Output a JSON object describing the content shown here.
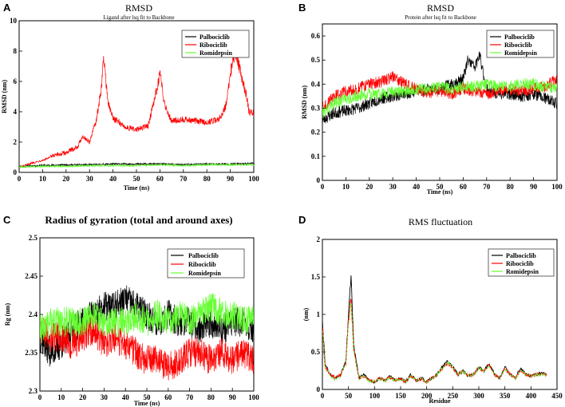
{
  "panels": [
    {
      "id": "A",
      "letter": "A",
      "title": "RMSD",
      "subtitle": "Ligand after lsq fit to Backbone",
      "xlabel": "Time (ns)",
      "ylabel": "RMSD (nm)",
      "xticks": [
        "0",
        "10",
        "20",
        "30",
        "40",
        "50",
        "60",
        "70",
        "80",
        "90",
        "100"
      ],
      "yticks": [
        "0",
        "2",
        "4",
        "6",
        "8",
        "10"
      ],
      "legend": [
        "Palbociclib",
        "Ribociclib",
        "Romidepsin"
      ]
    },
    {
      "id": "B",
      "letter": "B",
      "title": "RMSD",
      "subtitle": "Protein after lsq fit to Backbone",
      "xlabel": "Time (ns)",
      "ylabel": "RMSD (nm)",
      "xticks": [
        "0",
        "10",
        "20",
        "30",
        "40",
        "50",
        "60",
        "70",
        "80",
        "90",
        "100"
      ],
      "yticks": [
        "0",
        "0.1",
        "0.2",
        "0.3",
        "0.4",
        "0.5",
        "0.6"
      ],
      "legend": [
        "Palbociclib",
        "Ribociclib",
        "Romidepsin"
      ]
    },
    {
      "id": "C",
      "letter": "C",
      "title": "Radius of gyration (total and around axes)",
      "subtitle": "",
      "xlabel": "Time (ns)",
      "ylabel": "Rg (nm)",
      "xticks": [
        "0",
        "10",
        "20",
        "30",
        "40",
        "50",
        "60",
        "70",
        "80",
        "90",
        "100"
      ],
      "yticks": [
        "2.3",
        "2.35",
        "2.4",
        "2.45",
        "2.5"
      ],
      "legend": [
        "Palbociclib",
        "Ribociclib",
        "Romidepsin"
      ]
    },
    {
      "id": "D",
      "letter": "D",
      "title": "RMS fluctuation",
      "subtitle": "",
      "xlabel": "Residue",
      "ylabel": "(nm)",
      "xticks": [
        "0",
        "50",
        "100",
        "150",
        "200",
        "250",
        "300",
        "350",
        "400",
        "450"
      ],
      "yticks": [
        "0",
        "0.5",
        "1",
        "1.5",
        "2"
      ],
      "legend": [
        "Palbociclib",
        "Ribociclib",
        "Romidepsin"
      ]
    }
  ],
  "colors": {
    "palbociclib": "#000000",
    "ribociclib": "#ff0000",
    "romidepsin": "#66ff33"
  },
  "chart_data": [
    {
      "type": "line",
      "panel": "A",
      "title": "RMSD",
      "subtitle": "Ligand after lsq fit to Backbone",
      "xlabel": "Time (ns)",
      "ylabel": "RMSD (nm)",
      "xlim": [
        0,
        100
      ],
      "ylim": [
        0,
        10
      ],
      "legend_position": "top-right",
      "series": [
        {
          "name": "Palbociclib",
          "color": "#000000",
          "x": [
            0,
            10,
            20,
            30,
            40,
            50,
            60,
            70,
            80,
            90,
            100
          ],
          "y": [
            0.4,
            0.45,
            0.5,
            0.5,
            0.55,
            0.55,
            0.55,
            0.5,
            0.55,
            0.55,
            0.6
          ]
        },
        {
          "name": "Ribociclib",
          "color": "#ff0000",
          "x": [
            0,
            5,
            10,
            15,
            20,
            25,
            27,
            30,
            33,
            35,
            36,
            38,
            40,
            45,
            50,
            55,
            58,
            60,
            62,
            65,
            70,
            75,
            80,
            85,
            88,
            90,
            92,
            93,
            95,
            97,
            98,
            100
          ],
          "y": [
            0.3,
            0.6,
            0.8,
            1.1,
            1.3,
            1.7,
            2.4,
            2.0,
            3.5,
            5.5,
            7.6,
            4.5,
            3.6,
            3.0,
            2.8,
            3.1,
            5.0,
            6.5,
            4.5,
            3.4,
            3.5,
            3.4,
            3.3,
            3.5,
            4.3,
            6.5,
            8.0,
            7.5,
            6.2,
            5.0,
            4.0,
            3.9
          ]
        },
        {
          "name": "Romidepsin",
          "color": "#66ff33",
          "x": [
            0,
            10,
            20,
            30,
            40,
            50,
            60,
            70,
            80,
            90,
            100
          ],
          "y": [
            0.35,
            0.4,
            0.4,
            0.45,
            0.45,
            0.45,
            0.5,
            0.45,
            0.5,
            0.5,
            0.5
          ]
        }
      ]
    },
    {
      "type": "line",
      "panel": "B",
      "title": "RMSD",
      "subtitle": "Protein after lsq fit to Backbone",
      "xlabel": "Time (ns)",
      "ylabel": "RMSD (nm)",
      "xlim": [
        0,
        100
      ],
      "ylim": [
        0,
        0.65
      ],
      "legend_position": "top-right",
      "series": [
        {
          "name": "Palbociclib",
          "color": "#000000",
          "x": [
            0,
            5,
            10,
            15,
            20,
            25,
            30,
            35,
            40,
            45,
            50,
            55,
            60,
            62,
            65,
            67,
            70,
            75,
            80,
            85,
            90,
            95,
            100
          ],
          "y": [
            0.25,
            0.28,
            0.29,
            0.3,
            0.32,
            0.34,
            0.35,
            0.36,
            0.37,
            0.38,
            0.38,
            0.4,
            0.42,
            0.5,
            0.47,
            0.52,
            0.38,
            0.36,
            0.36,
            0.35,
            0.36,
            0.34,
            0.32
          ]
        },
        {
          "name": "Ribociclib",
          "color": "#ff0000",
          "x": [
            0,
            5,
            10,
            15,
            20,
            25,
            30,
            35,
            40,
            45,
            50,
            55,
            60,
            65,
            70,
            75,
            80,
            85,
            90,
            95,
            100
          ],
          "y": [
            0.3,
            0.35,
            0.37,
            0.38,
            0.4,
            0.41,
            0.43,
            0.4,
            0.38,
            0.36,
            0.37,
            0.36,
            0.38,
            0.37,
            0.36,
            0.37,
            0.38,
            0.37,
            0.38,
            0.39,
            0.42
          ]
        },
        {
          "name": "Romidepsin",
          "color": "#66ff33",
          "x": [
            0,
            5,
            10,
            15,
            20,
            25,
            30,
            35,
            40,
            45,
            50,
            55,
            60,
            65,
            70,
            75,
            80,
            85,
            90,
            95,
            100
          ],
          "y": [
            0.28,
            0.32,
            0.34,
            0.35,
            0.36,
            0.36,
            0.37,
            0.37,
            0.38,
            0.38,
            0.39,
            0.38,
            0.39,
            0.39,
            0.4,
            0.39,
            0.39,
            0.4,
            0.4,
            0.39,
            0.38
          ]
        }
      ]
    },
    {
      "type": "line",
      "panel": "C",
      "title": "Radius of gyration (total and around axes)",
      "xlabel": "Time (ns)",
      "ylabel": "Rg (nm)",
      "xlim": [
        0,
        100
      ],
      "ylim": [
        2.3,
        2.5
      ],
      "legend_position": "top-right",
      "series": [
        {
          "name": "Palbociclib",
          "color": "#000000",
          "x": [
            0,
            5,
            10,
            15,
            20,
            25,
            30,
            35,
            40,
            45,
            50,
            55,
            60,
            65,
            70,
            75,
            80,
            85,
            90,
            95,
            100
          ],
          "y": [
            2.37,
            2.35,
            2.36,
            2.38,
            2.39,
            2.4,
            2.41,
            2.41,
            2.42,
            2.41,
            2.4,
            2.39,
            2.4,
            2.39,
            2.39,
            2.38,
            2.39,
            2.38,
            2.39,
            2.39,
            2.38
          ]
        },
        {
          "name": "Ribociclib",
          "color": "#ff0000",
          "x": [
            0,
            5,
            10,
            15,
            20,
            25,
            30,
            35,
            40,
            45,
            50,
            55,
            60,
            65,
            70,
            75,
            80,
            85,
            90,
            95,
            100
          ],
          "y": [
            2.38,
            2.37,
            2.37,
            2.36,
            2.37,
            2.38,
            2.36,
            2.37,
            2.36,
            2.35,
            2.34,
            2.34,
            2.33,
            2.34,
            2.35,
            2.35,
            2.34,
            2.35,
            2.34,
            2.35,
            2.34
          ]
        },
        {
          "name": "Romidepsin",
          "color": "#66ff33",
          "x": [
            0,
            5,
            10,
            15,
            20,
            25,
            30,
            35,
            40,
            45,
            50,
            55,
            60,
            65,
            70,
            75,
            80,
            85,
            90,
            95,
            100
          ],
          "y": [
            2.38,
            2.39,
            2.39,
            2.39,
            2.39,
            2.4,
            2.39,
            2.39,
            2.39,
            2.4,
            2.39,
            2.4,
            2.39,
            2.4,
            2.39,
            2.4,
            2.41,
            2.4,
            2.4,
            2.39,
            2.4
          ]
        }
      ]
    },
    {
      "type": "line",
      "panel": "D",
      "title": "RMS fluctuation",
      "xlabel": "Residue",
      "ylabel": "(nm)",
      "xlim": [
        0,
        450
      ],
      "ylim": [
        0,
        2
      ],
      "legend_position": "top-right",
      "series": [
        {
          "name": "Palbociclib",
          "color": "#000000",
          "x": [
            0,
            5,
            15,
            25,
            35,
            45,
            50,
            55,
            60,
            70,
            80,
            90,
            100,
            110,
            120,
            130,
            140,
            150,
            160,
            170,
            180,
            190,
            200,
            210,
            220,
            230,
            240,
            250,
            260,
            270,
            280,
            290,
            300,
            310,
            320,
            330,
            340,
            350,
            360,
            370,
            380,
            390,
            400,
            410,
            420,
            430
          ],
          "y": [
            0.95,
            0.35,
            0.2,
            0.15,
            0.2,
            0.4,
            1.0,
            1.53,
            0.6,
            0.15,
            0.2,
            0.12,
            0.1,
            0.15,
            0.12,
            0.18,
            0.12,
            0.15,
            0.1,
            0.2,
            0.12,
            0.15,
            0.1,
            0.15,
            0.2,
            0.3,
            0.38,
            0.3,
            0.2,
            0.25,
            0.18,
            0.2,
            0.3,
            0.25,
            0.35,
            0.2,
            0.15,
            0.3,
            0.2,
            0.15,
            0.28,
            0.2,
            0.18,
            0.2,
            0.22,
            0.2
          ]
        },
        {
          "name": "Ribociclib",
          "color": "#ff0000",
          "x": [
            0,
            5,
            15,
            25,
            35,
            45,
            50,
            55,
            60,
            70,
            80,
            90,
            100,
            110,
            120,
            130,
            140,
            150,
            160,
            170,
            180,
            190,
            200,
            210,
            220,
            230,
            240,
            250,
            260,
            270,
            280,
            290,
            300,
            310,
            320,
            330,
            340,
            350,
            360,
            370,
            380,
            390,
            400,
            410,
            420,
            430
          ],
          "y": [
            0.85,
            0.3,
            0.2,
            0.15,
            0.2,
            0.35,
            0.9,
            1.22,
            0.55,
            0.15,
            0.18,
            0.12,
            0.1,
            0.15,
            0.12,
            0.16,
            0.12,
            0.14,
            0.1,
            0.18,
            0.12,
            0.14,
            0.1,
            0.15,
            0.2,
            0.28,
            0.35,
            0.28,
            0.2,
            0.24,
            0.18,
            0.2,
            0.28,
            0.24,
            0.33,
            0.2,
            0.15,
            0.28,
            0.2,
            0.15,
            0.26,
            0.2,
            0.18,
            0.2,
            0.2,
            0.19
          ]
        },
        {
          "name": "Romidepsin",
          "color": "#66ff33",
          "x": [
            0,
            5,
            15,
            25,
            35,
            45,
            50,
            55,
            60,
            70,
            80,
            90,
            100,
            110,
            120,
            130,
            140,
            150,
            160,
            170,
            180,
            190,
            200,
            210,
            220,
            230,
            240,
            250,
            260,
            270,
            280,
            290,
            300,
            310,
            320,
            330,
            340,
            350,
            360,
            370,
            380,
            390,
            400,
            410,
            420,
            430
          ],
          "y": [
            0.8,
            0.3,
            0.18,
            0.14,
            0.18,
            0.35,
            0.85,
            1.18,
            0.5,
            0.14,
            0.18,
            0.12,
            0.1,
            0.14,
            0.12,
            0.16,
            0.12,
            0.14,
            0.1,
            0.18,
            0.12,
            0.14,
            0.1,
            0.14,
            0.2,
            0.28,
            0.36,
            0.28,
            0.2,
            0.24,
            0.18,
            0.2,
            0.28,
            0.24,
            0.32,
            0.2,
            0.15,
            0.27,
            0.2,
            0.15,
            0.25,
            0.2,
            0.18,
            0.2,
            0.2,
            0.19
          ]
        }
      ]
    }
  ]
}
